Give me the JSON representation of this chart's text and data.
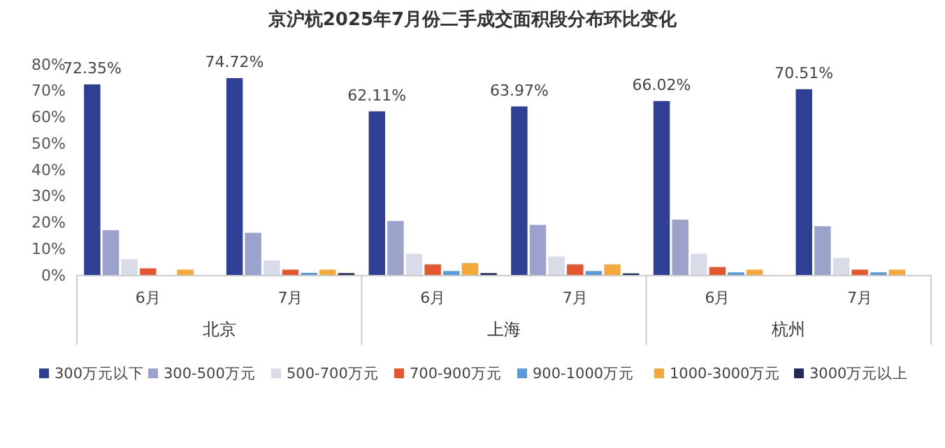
{
  "chart_data": {
    "type": "bar",
    "title": "京沪杭2025年7月份二手成交面积段分布环比变化",
    "categories": [
      "6月",
      "7月",
      "6月",
      "7月",
      "6月",
      "7月"
    ],
    "annotations": [
      "北京",
      "上海",
      "杭州"
    ],
    "series": [
      {
        "name": "300万元以下",
        "color": "#2e3f94",
        "values": [
          72.35,
          74.72,
          62.11,
          63.97,
          66.02,
          70.51
        ],
        "value_labels": [
          "72.35%",
          "74.72%",
          "62.11%",
          "63.97%",
          "66.02%",
          "70.51%"
        ]
      },
      {
        "name": "300-500万元",
        "color": "#9ba3cc",
        "values": [
          17,
          16,
          20.5,
          19,
          21,
          18.5
        ]
      },
      {
        "name": "500-700万元",
        "color": "#d9dbe8",
        "values": [
          6,
          5.5,
          8,
          7,
          8,
          6.5
        ]
      },
      {
        "name": "700-900万元",
        "color": "#e4562e",
        "values": [
          2.5,
          2,
          4,
          4,
          3,
          2
        ]
      },
      {
        "name": "900-1000万元",
        "color": "#5b9bd5",
        "values": [
          0,
          0.8,
          1.5,
          1.5,
          1,
          1
        ]
      },
      {
        "name": "1000-3000万元",
        "color": "#f5a93b",
        "values": [
          2,
          2,
          4.5,
          4,
          2,
          2
        ]
      },
      {
        "name": "3000万元以上",
        "color": "#1f2a5a",
        "values": [
          0,
          0.7,
          0.7,
          0.6,
          0,
          0
        ]
      }
    ],
    "ylim": [
      0,
      80
    ],
    "yticks": [
      {
        "value": 0,
        "label": "0%"
      },
      {
        "value": 10,
        "label": "10%"
      },
      {
        "value": 20,
        "label": "20%"
      },
      {
        "value": 30,
        "label": "30%"
      },
      {
        "value": 40,
        "label": "40%"
      },
      {
        "value": 50,
        "label": "50%"
      },
      {
        "value": 60,
        "label": "60%"
      },
      {
        "value": 70,
        "label": "70%"
      },
      {
        "value": 80,
        "label": "80%"
      }
    ],
    "grid": false,
    "legend": "bottom"
  }
}
